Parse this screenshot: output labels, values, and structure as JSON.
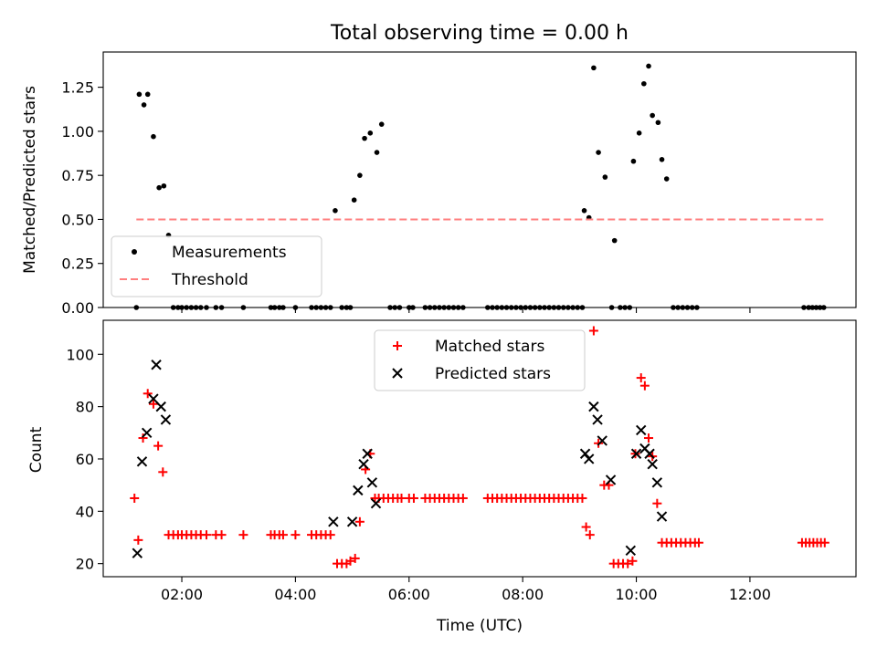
{
  "figure": {
    "title": "Total observing time = 0.00 h"
  },
  "chart_data": [
    {
      "type": "scatter",
      "ylabel": "Matched/Predicted stars",
      "xlabel": "",
      "xlim": [
        "00:37",
        "13:52"
      ],
      "ylim": [
        0,
        1.45
      ],
      "yticks": [
        "0.00",
        "0.25",
        "0.50",
        "0.75",
        "1.00",
        "1.25"
      ],
      "grid": false,
      "legend_position": "lower-left",
      "series": [
        {
          "name": "Measurements",
          "marker": "dot",
          "color": "#000000",
          "points": [
            [
              "01:12",
              0.0
            ],
            [
              "01:15",
              1.21
            ],
            [
              "01:20",
              1.15
            ],
            [
              "01:24",
              1.21
            ],
            [
              "01:30",
              0.97
            ],
            [
              "01:36",
              0.68
            ],
            [
              "01:41",
              0.69
            ],
            [
              "01:46",
              0.41
            ],
            [
              "01:51",
              0
            ],
            [
              "01:56",
              0
            ],
            [
              "02:00",
              0
            ],
            [
              "02:05",
              0
            ],
            [
              "02:10",
              0
            ],
            [
              "02:15",
              0
            ],
            [
              "02:20",
              0
            ],
            [
              "02:26",
              0
            ],
            [
              "02:36",
              0
            ],
            [
              "02:42",
              0
            ],
            [
              "03:05",
              0
            ],
            [
              "03:34",
              0
            ],
            [
              "03:38",
              0
            ],
            [
              "03:43",
              0
            ],
            [
              "03:47",
              0
            ],
            [
              "04:00",
              0
            ],
            [
              "04:17",
              0
            ],
            [
              "04:22",
              0
            ],
            [
              "04:27",
              0
            ],
            [
              "04:32",
              0
            ],
            [
              "04:37",
              0
            ],
            [
              "04:42",
              0.55
            ],
            [
              "05:02",
              0.61
            ],
            [
              "05:08",
              0.75
            ],
            [
              "05:13",
              0.96
            ],
            [
              "05:19",
              0.99
            ],
            [
              "05:26",
              0.88
            ],
            [
              "05:31",
              1.04
            ],
            [
              "04:49",
              0
            ],
            [
              "04:54",
              0
            ],
            [
              "04:58",
              0
            ],
            [
              "05:40",
              0
            ],
            [
              "05:45",
              0
            ],
            [
              "05:50",
              0
            ],
            [
              "06:00",
              0
            ],
            [
              "06:04",
              0
            ],
            [
              "06:17",
              0
            ],
            [
              "06:22",
              0
            ],
            [
              "06:27",
              0
            ],
            [
              "06:32",
              0
            ],
            [
              "06:37",
              0
            ],
            [
              "06:42",
              0
            ],
            [
              "06:47",
              0
            ],
            [
              "06:52",
              0
            ],
            [
              "06:57",
              0
            ],
            [
              "07:23",
              0
            ],
            [
              "07:28",
              0
            ],
            [
              "07:33",
              0
            ],
            [
              "07:38",
              0
            ],
            [
              "07:43",
              0
            ],
            [
              "07:48",
              0
            ],
            [
              "07:53",
              0
            ],
            [
              "07:58",
              0
            ],
            [
              "08:03",
              0
            ],
            [
              "08:08",
              0
            ],
            [
              "08:13",
              0
            ],
            [
              "08:18",
              0
            ],
            [
              "08:23",
              0
            ],
            [
              "08:28",
              0
            ],
            [
              "08:33",
              0
            ],
            [
              "08:38",
              0
            ],
            [
              "08:43",
              0
            ],
            [
              "08:48",
              0
            ],
            [
              "08:53",
              0
            ],
            [
              "08:58",
              0
            ],
            [
              "09:03",
              0
            ],
            [
              "09:05",
              0.55
            ],
            [
              "09:10",
              0.51
            ],
            [
              "09:15",
              1.36
            ],
            [
              "09:20",
              0.88
            ],
            [
              "09:27",
              0.74
            ],
            [
              "09:37",
              0.38
            ],
            [
              "09:48",
              0.0
            ],
            [
              "09:53",
              0.0
            ],
            [
              "09:57",
              0.83
            ],
            [
              "10:03",
              0.99
            ],
            [
              "10:08",
              1.27
            ],
            [
              "10:13",
              1.37
            ],
            [
              "10:17",
              1.09
            ],
            [
              "10:23",
              1.05
            ],
            [
              "10:27",
              0.84
            ],
            [
              "10:32",
              0.73
            ],
            [
              "09:34",
              0
            ],
            [
              "09:43",
              0
            ],
            [
              "10:39",
              0
            ],
            [
              "10:44",
              0
            ],
            [
              "10:49",
              0
            ],
            [
              "10:54",
              0
            ],
            [
              "10:59",
              0
            ],
            [
              "11:04",
              0
            ],
            [
              "12:57",
              0
            ],
            [
              "13:02",
              0
            ],
            [
              "13:06",
              0
            ],
            [
              "13:10",
              0
            ],
            [
              "13:14",
              0
            ],
            [
              "13:18",
              0
            ]
          ]
        },
        {
          "name": "Threshold",
          "marker": "dashed-line",
          "color": "#ff7f7f",
          "points": [
            [
              "01:12",
              0.5
            ],
            [
              "13:20",
              0.5
            ]
          ]
        }
      ]
    },
    {
      "type": "scatter",
      "ylabel": "Count",
      "xlabel": "Time (UTC)",
      "xlim": [
        "00:37",
        "13:52"
      ],
      "ylim": [
        15,
        113
      ],
      "yticks": [
        "20",
        "40",
        "60",
        "80",
        "100"
      ],
      "xticks": [
        "02:00",
        "04:00",
        "06:00",
        "08:00",
        "10:00",
        "12:00"
      ],
      "grid": false,
      "legend_position": "upper-center",
      "series": [
        {
          "name": "Matched stars",
          "marker": "plus",
          "color": "#ff0000",
          "points": [
            [
              "01:10",
              45
            ],
            [
              "01:14",
              29
            ],
            [
              "01:19",
              68
            ],
            [
              "01:24",
              85
            ],
            [
              "01:30",
              81
            ],
            [
              "01:35",
              65
            ],
            [
              "01:40",
              55
            ],
            [
              "01:46",
              31
            ],
            [
              "01:51",
              31
            ],
            [
              "01:56",
              31
            ],
            [
              "02:00",
              31
            ],
            [
              "02:05",
              31
            ],
            [
              "02:10",
              31
            ],
            [
              "02:15",
              31
            ],
            [
              "02:20",
              31
            ],
            [
              "02:26",
              31
            ],
            [
              "02:36",
              31
            ],
            [
              "02:42",
              31
            ],
            [
              "03:05",
              31
            ],
            [
              "03:34",
              31
            ],
            [
              "03:38",
              31
            ],
            [
              "03:43",
              31
            ],
            [
              "03:47",
              31
            ],
            [
              "04:00",
              31
            ],
            [
              "04:17",
              31
            ],
            [
              "04:22",
              31
            ],
            [
              "04:27",
              31
            ],
            [
              "04:32",
              31
            ],
            [
              "04:37",
              31
            ],
            [
              "04:44",
              20
            ],
            [
              "04:49",
              20
            ],
            [
              "04:54",
              20
            ],
            [
              "04:58",
              21
            ],
            [
              "05:03",
              22
            ],
            [
              "05:08",
              36
            ],
            [
              "05:14",
              56
            ],
            [
              "05:19",
              62
            ],
            [
              "05:24",
              45
            ],
            [
              "05:28",
              45
            ],
            [
              "05:33",
              45
            ],
            [
              "05:38",
              45
            ],
            [
              "05:43",
              45
            ],
            [
              "05:48",
              45
            ],
            [
              "05:52",
              45
            ],
            [
              "06:00",
              45
            ],
            [
              "06:05",
              45
            ],
            [
              "06:17",
              45
            ],
            [
              "06:22",
              45
            ],
            [
              "06:27",
              45
            ],
            [
              "06:32",
              45
            ],
            [
              "06:37",
              45
            ],
            [
              "06:42",
              45
            ],
            [
              "06:47",
              45
            ],
            [
              "06:52",
              45
            ],
            [
              "06:57",
              45
            ],
            [
              "07:23",
              45
            ],
            [
              "07:28",
              45
            ],
            [
              "07:33",
              45
            ],
            [
              "07:38",
              45
            ],
            [
              "07:43",
              45
            ],
            [
              "07:48",
              45
            ],
            [
              "07:53",
              45
            ],
            [
              "07:58",
              45
            ],
            [
              "08:03",
              45
            ],
            [
              "08:08",
              45
            ],
            [
              "08:13",
              45
            ],
            [
              "08:18",
              45
            ],
            [
              "08:23",
              45
            ],
            [
              "08:28",
              45
            ],
            [
              "08:33",
              45
            ],
            [
              "08:38",
              45
            ],
            [
              "08:43",
              45
            ],
            [
              "08:48",
              45
            ],
            [
              "08:53",
              45
            ],
            [
              "08:58",
              45
            ],
            [
              "09:03",
              45
            ],
            [
              "09:07",
              34
            ],
            [
              "09:11",
              31
            ],
            [
              "09:15",
              109
            ],
            [
              "09:20",
              66
            ],
            [
              "09:26",
              50
            ],
            [
              "09:31",
              50
            ],
            [
              "09:36",
              20
            ],
            [
              "09:41",
              20
            ],
            [
              "09:46",
              20
            ],
            [
              "09:51",
              20
            ],
            [
              "09:56",
              21
            ],
            [
              "09:59",
              62
            ],
            [
              "10:05",
              91
            ],
            [
              "10:09",
              88
            ],
            [
              "10:13",
              68
            ],
            [
              "10:17",
              61
            ],
            [
              "10:22",
              43
            ],
            [
              "10:27",
              28
            ],
            [
              "10:32",
              28
            ],
            [
              "10:37",
              28
            ],
            [
              "10:42",
              28
            ],
            [
              "10:47",
              28
            ],
            [
              "10:52",
              28
            ],
            [
              "10:57",
              28
            ],
            [
              "11:02",
              28
            ],
            [
              "11:06",
              28
            ],
            [
              "12:55",
              28
            ],
            [
              "12:59",
              28
            ],
            [
              "13:03",
              28
            ],
            [
              "13:07",
              28
            ],
            [
              "13:11",
              28
            ],
            [
              "13:15",
              28
            ],
            [
              "13:19",
              28
            ]
          ]
        },
        {
          "name": "Predicted stars",
          "marker": "x",
          "color": "#000000",
          "points": [
            [
              "01:13",
              24
            ],
            [
              "01:18",
              59
            ],
            [
              "01:23",
              70
            ],
            [
              "01:30",
              83
            ],
            [
              "01:33",
              96
            ],
            [
              "01:38",
              80
            ],
            [
              "01:43",
              75
            ],
            [
              "04:40",
              36
            ],
            [
              "05:00",
              36
            ],
            [
              "05:06",
              48
            ],
            [
              "05:12",
              58
            ],
            [
              "05:16",
              62
            ],
            [
              "05:21",
              51
            ],
            [
              "05:25",
              43
            ],
            [
              "09:06",
              62
            ],
            [
              "09:10",
              60
            ],
            [
              "09:15",
              80
            ],
            [
              "09:19",
              75
            ],
            [
              "09:24",
              67
            ],
            [
              "09:33",
              52
            ],
            [
              "09:54",
              25
            ],
            [
              "10:00",
              62
            ],
            [
              "10:05",
              71
            ],
            [
              "10:09",
              64
            ],
            [
              "10:14",
              62
            ],
            [
              "10:17",
              58
            ],
            [
              "10:22",
              51
            ],
            [
              "10:27",
              38
            ]
          ]
        }
      ]
    }
  ]
}
